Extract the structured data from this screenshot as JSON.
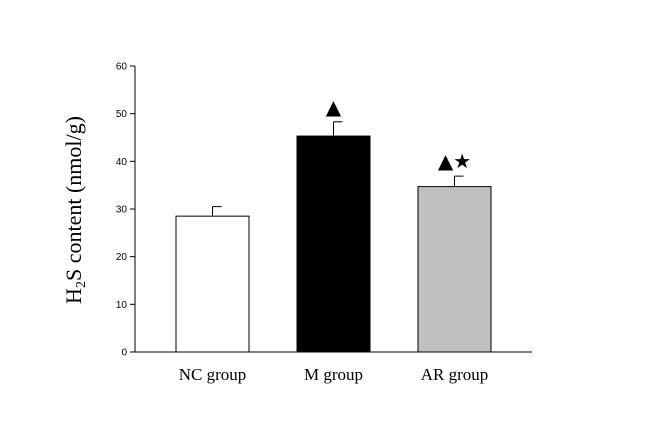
{
  "chart_data": {
    "type": "bar",
    "categories": [
      "NC group",
      "M group",
      "AR group"
    ],
    "values": [
      28.5,
      45.3,
      34.7
    ],
    "errors": [
      2.0,
      3.0,
      2.2
    ],
    "annotations": [
      "",
      "▲",
      "▲★"
    ],
    "bar_colors": [
      "#ffffff",
      "#000000",
      "#c0c0c0"
    ],
    "ylabel_main": "H",
    "ylabel_sub": "2",
    "ylabel_rest": "S content (nmol/g)",
    "xlabel": "",
    "ylim": [
      0,
      60
    ],
    "yticks": [
      0,
      10,
      20,
      30,
      40,
      50,
      60
    ],
    "grid": false
  }
}
